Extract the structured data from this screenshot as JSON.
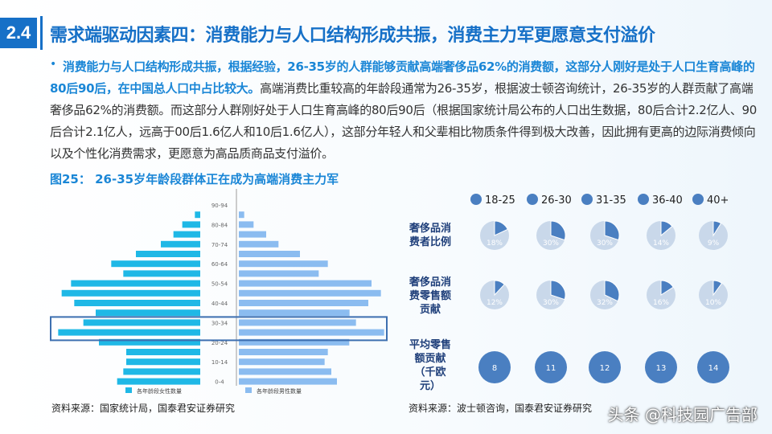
{
  "header": {
    "section": "2.4",
    "title": "需求端驱动因素四：消费能力与人口结构形成共振，消费主力军更愿意支付溢价"
  },
  "body": {
    "highlight": "消费能力与人口结构形成共振，根据经验，26-35岁的人群能够贡献高端奢侈品62%的消费额，这部分人刚好是处于人口生育高峰的80后90后，在中国总人口中占比较大。",
    "text": "高端消费比重较高的年龄段通常为26-35岁，根据波士顿咨询统计，26-35岁的人群贡献了高端奢侈品62%的消费额。而这部分人群刚好处于人口生育高峰的80后90后（根据国家统计局公布的人口出生数据，80后合计2.2亿人、90后合计2.1亿人，远高于00后1.6亿人和10后1.6亿人），这部分年轻人和父辈相比物质条件得到极大改善，因此拥有更高的边际消费倾向以及个性化消费需求，更愿意为高品质商品支付溢价。"
  },
  "caption": "图25： 26-35岁年龄段群体正在成为高端消费主力军",
  "sources": {
    "left": "资料来源：国家统计局，国泰君安证券研究",
    "right": "资料来源：波士顿咨询，国泰君安证券研究"
  },
  "watermark": "头条 @科技园广告部",
  "colors": {
    "accent": "#1670c7",
    "female": "#1fb8e6",
    "male": "#8bbcf0",
    "pie_dark": "#4a7fc1",
    "pie_light": "#c9d8ea"
  },
  "chart_data": [
    {
      "type": "bar",
      "subtype": "population-pyramid",
      "categories": [
        "90-94",
        "85-89",
        "80-84",
        "75-79",
        "70-74",
        "65-69",
        "60-64",
        "55-59",
        "50-54",
        "45-49",
        "40-44",
        "35-39",
        "30-34",
        "25-29",
        "20-24",
        "15-19",
        "10-14",
        "5-9",
        "0-4"
      ],
      "tick_labels": [
        "90-94",
        "80-84",
        "70-74",
        "60-64",
        "50-54",
        "40-44",
        "30-34",
        "20-24",
        "10-14",
        "0-4"
      ],
      "series": [
        {
          "name": "各年龄段女性数量",
          "values": [
            0,
            2.0,
            6.7,
            10.0,
            14.7,
            24.0,
            33.2,
            28.7,
            48.2,
            51.7,
            47.0,
            39.0,
            43.6,
            53.0,
            37.8,
            27.6,
            27.6,
            28.7,
            31.0
          ]
        },
        {
          "name": "各年龄段男性数量",
          "values": [
            0,
            2.0,
            5.5,
            10.2,
            14.8,
            22.8,
            33.2,
            29.8,
            49.5,
            53.0,
            48.3,
            41.3,
            43.7,
            54.2,
            41.2,
            33.2,
            32.0,
            34.5,
            36.6
          ]
        }
      ],
      "highlight": [
        "30-34",
        "25-29"
      ],
      "legend": "bottom"
    },
    {
      "type": "pie",
      "categories": [
        "18-25",
        "26-30",
        "31-35",
        "36-40",
        "40+"
      ],
      "rows": [
        {
          "label": "奢侈品消费者比例",
          "values": [
            18,
            30,
            30,
            14,
            9
          ],
          "labels": [
            "18%",
            "30%",
            "30%",
            "14%",
            "9%"
          ]
        },
        {
          "label": "奢侈品消费零售额贡献",
          "values": [
            12,
            30,
            32,
            16,
            10
          ],
          "labels": [
            "12%",
            "30%",
            "32%",
            "16%",
            "10%"
          ]
        }
      ],
      "avg": {
        "label": "平均零售额贡献（千欧元）",
        "values": [
          "8",
          "11",
          "12",
          "13",
          "14"
        ]
      }
    }
  ]
}
